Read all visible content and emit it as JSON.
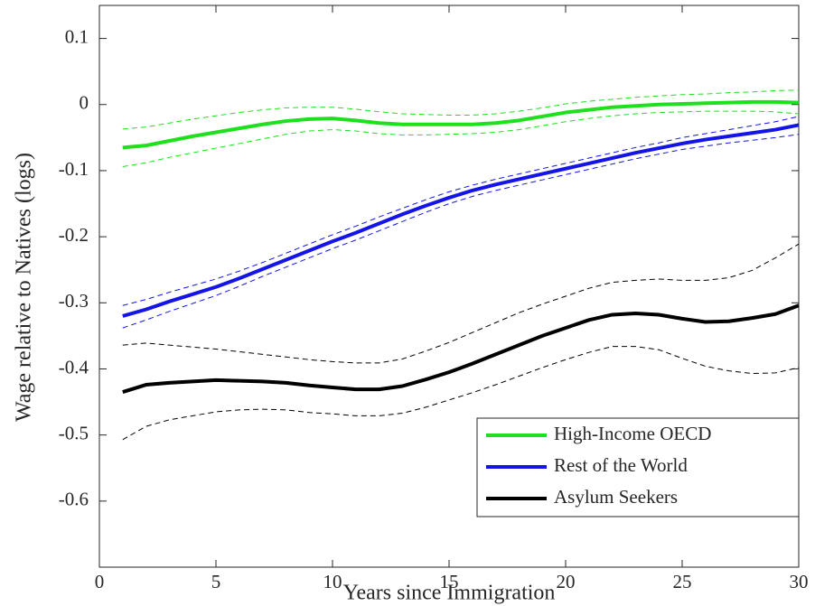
{
  "chart_data": {
    "type": "line",
    "xlabel": "Years since Immigration",
    "ylabel": "Wage relative to Natives (logs)",
    "x": [
      1,
      2,
      3,
      4,
      5,
      6,
      7,
      8,
      9,
      10,
      11,
      12,
      13,
      14,
      15,
      16,
      17,
      18,
      19,
      20,
      21,
      22,
      23,
      24,
      25,
      26,
      27,
      28,
      29,
      30
    ],
    "xlim": [
      0,
      30
    ],
    "xticks": [
      0,
      5,
      10,
      15,
      20,
      25,
      30
    ],
    "ylim": [
      -0.7,
      0.15
    ],
    "yticks": [
      0.1,
      0,
      -0.1,
      -0.2,
      -0.3,
      -0.4,
      -0.5,
      -0.6
    ],
    "legend": "lower right",
    "series": [
      {
        "name": "High-Income OECD",
        "color": "#1fe01f",
        "values": [
          -0.065,
          -0.062,
          -0.055,
          -0.048,
          -0.042,
          -0.036,
          -0.03,
          -0.025,
          -0.022,
          -0.021,
          -0.024,
          -0.028,
          -0.03,
          -0.03,
          -0.03,
          -0.03,
          -0.028,
          -0.024,
          -0.018,
          -0.012,
          -0.008,
          -0.004,
          -0.002,
          0.0,
          0.001,
          0.002,
          0.003,
          0.004,
          0.004,
          0.003
        ],
        "ci_upper": [
          -0.037,
          -0.034,
          -0.028,
          -0.022,
          -0.017,
          -0.012,
          -0.008,
          -0.005,
          -0.004,
          -0.004,
          -0.007,
          -0.011,
          -0.014,
          -0.015,
          -0.016,
          -0.016,
          -0.014,
          -0.01,
          -0.005,
          0.001,
          0.005,
          0.008,
          0.011,
          0.013,
          0.015,
          0.016,
          0.018,
          0.019,
          0.021,
          0.022
        ],
        "ci_lower": [
          -0.094,
          -0.088,
          -0.08,
          -0.073,
          -0.066,
          -0.059,
          -0.052,
          -0.045,
          -0.04,
          -0.038,
          -0.04,
          -0.044,
          -0.046,
          -0.046,
          -0.045,
          -0.044,
          -0.042,
          -0.038,
          -0.032,
          -0.026,
          -0.021,
          -0.017,
          -0.014,
          -0.012,
          -0.011,
          -0.01,
          -0.01,
          -0.01,
          -0.011,
          -0.014
        ]
      },
      {
        "name": "Rest of the World",
        "color": "#1414e6",
        "values": [
          -0.32,
          -0.31,
          -0.298,
          -0.287,
          -0.276,
          -0.263,
          -0.249,
          -0.235,
          -0.221,
          -0.207,
          -0.194,
          -0.18,
          -0.166,
          -0.153,
          -0.141,
          -0.13,
          -0.121,
          -0.113,
          -0.105,
          -0.097,
          -0.089,
          -0.081,
          -0.073,
          -0.066,
          -0.059,
          -0.053,
          -0.048,
          -0.043,
          -0.038,
          -0.031
        ],
        "ci_upper": [
          -0.304,
          -0.295,
          -0.284,
          -0.274,
          -0.264,
          -0.252,
          -0.239,
          -0.225,
          -0.211,
          -0.197,
          -0.184,
          -0.17,
          -0.157,
          -0.144,
          -0.132,
          -0.122,
          -0.113,
          -0.105,
          -0.097,
          -0.089,
          -0.081,
          -0.073,
          -0.065,
          -0.058,
          -0.05,
          -0.044,
          -0.038,
          -0.032,
          -0.026,
          -0.018
        ],
        "ci_lower": [
          -0.338,
          -0.326,
          -0.313,
          -0.301,
          -0.289,
          -0.275,
          -0.26,
          -0.246,
          -0.232,
          -0.218,
          -0.205,
          -0.191,
          -0.177,
          -0.163,
          -0.15,
          -0.139,
          -0.13,
          -0.122,
          -0.114,
          -0.106,
          -0.098,
          -0.09,
          -0.082,
          -0.075,
          -0.068,
          -0.063,
          -0.058,
          -0.054,
          -0.05,
          -0.045
        ]
      },
      {
        "name": "Asylum Seekers",
        "color": "#000000",
        "values": [
          -0.435,
          -0.424,
          -0.421,
          -0.419,
          -0.417,
          -0.418,
          -0.419,
          -0.421,
          -0.425,
          -0.428,
          -0.431,
          -0.431,
          -0.426,
          -0.416,
          -0.405,
          -0.392,
          -0.378,
          -0.364,
          -0.35,
          -0.338,
          -0.326,
          -0.318,
          -0.316,
          -0.318,
          -0.324,
          -0.329,
          -0.328,
          -0.323,
          -0.317,
          -0.304
        ],
        "ci_upper": [
          -0.364,
          -0.361,
          -0.364,
          -0.367,
          -0.37,
          -0.374,
          -0.378,
          -0.382,
          -0.386,
          -0.389,
          -0.391,
          -0.391,
          -0.385,
          -0.373,
          -0.36,
          -0.345,
          -0.33,
          -0.315,
          -0.302,
          -0.29,
          -0.278,
          -0.269,
          -0.266,
          -0.264,
          -0.266,
          -0.266,
          -0.262,
          -0.251,
          -0.232,
          -0.211
        ],
        "ci_lower": [
          -0.507,
          -0.487,
          -0.477,
          -0.471,
          -0.465,
          -0.462,
          -0.461,
          -0.462,
          -0.466,
          -0.468,
          -0.471,
          -0.471,
          -0.467,
          -0.458,
          -0.447,
          -0.436,
          -0.424,
          -0.411,
          -0.398,
          -0.386,
          -0.375,
          -0.366,
          -0.366,
          -0.371,
          -0.384,
          -0.396,
          -0.403,
          -0.407,
          -0.406,
          -0.398
        ]
      }
    ]
  }
}
